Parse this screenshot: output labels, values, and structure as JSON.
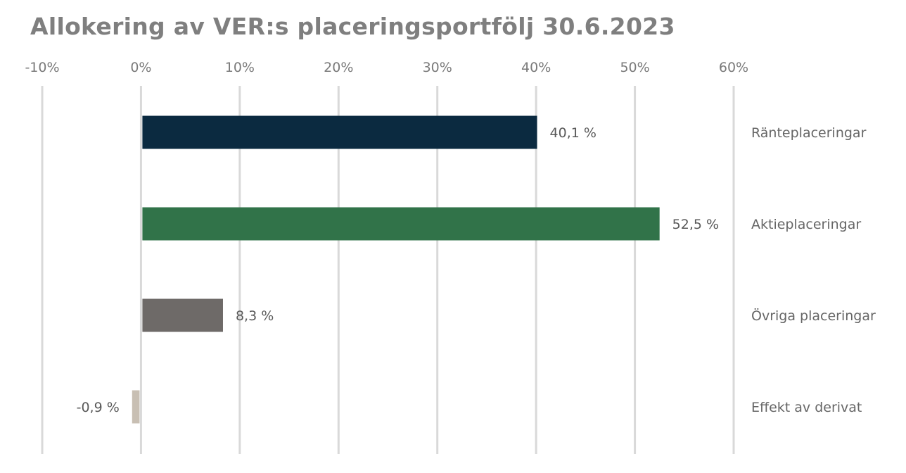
{
  "chart_data": {
    "type": "bar",
    "orientation": "horizontal",
    "title": "Allokering av VER:s placeringsportfölj 30.6.2023",
    "xlabel": "",
    "ylabel": "",
    "xlim": [
      -10,
      60
    ],
    "x_ticks": [
      -10,
      0,
      10,
      20,
      30,
      40,
      50,
      60
    ],
    "x_tick_labels": [
      "-10%",
      "0%",
      "10%",
      "20%",
      "30%",
      "40%",
      "50%",
      "60%"
    ],
    "x_axis_position": "top",
    "category_label_position": "right",
    "grid": true,
    "categories": [
      "Ränteplaceringar",
      "Aktieplaceringar",
      "Övriga placeringar",
      "Effekt av derivat"
    ],
    "values": [
      40.1,
      52.5,
      8.3,
      -0.9
    ],
    "data_labels": [
      "40,1 %",
      "52,5 %",
      "8,3 %",
      "-0,9 %"
    ],
    "colors": [
      "#0b2a40",
      "#317349",
      "#6e6a68",
      "#c8bfb3"
    ]
  },
  "style": {
    "title_color": "#7f7f7f",
    "grid_color": "#d9d9d9"
  }
}
